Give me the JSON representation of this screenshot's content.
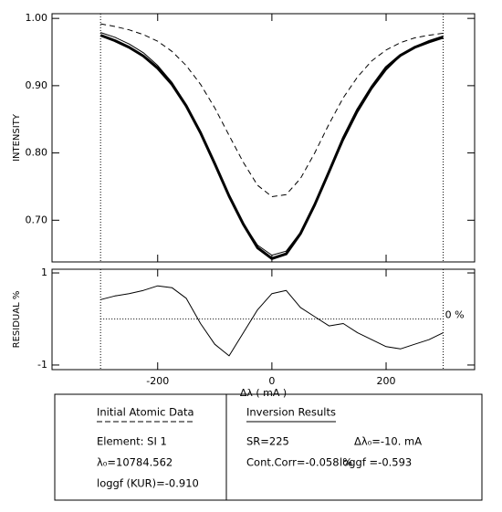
{
  "chart_data": [
    {
      "type": "line",
      "ylabel": "INTENSITY",
      "x": [
        -300,
        -275,
        -250,
        -225,
        -200,
        -175,
        -150,
        -125,
        -100,
        -75,
        -50,
        -25,
        0,
        25,
        50,
        75,
        100,
        125,
        150,
        175,
        200,
        225,
        250,
        275,
        300
      ],
      "series": [
        {
          "color": "#000000",
          "style": "dashed",
          "width": 1,
          "values": [
            0.992,
            0.988,
            0.983,
            0.976,
            0.966,
            0.951,
            0.93,
            0.902,
            0.867,
            0.826,
            0.786,
            0.752,
            0.735,
            0.738,
            0.762,
            0.8,
            0.843,
            0.882,
            0.913,
            0.937,
            0.953,
            0.964,
            0.971,
            0.975,
            0.978
          ]
        },
        {
          "color": "#000000",
          "style": "solid",
          "width": 3,
          "values": [
            0.975,
            0.967,
            0.957,
            0.944,
            0.926,
            0.902,
            0.87,
            0.83,
            0.784,
            0.736,
            0.694,
            0.659,
            0.643,
            0.65,
            0.68,
            0.723,
            0.772,
            0.822,
            0.864,
            0.898,
            0.927,
            0.945,
            0.957,
            0.965,
            0.972
          ]
        },
        {
          "color": "#000000",
          "style": "solid",
          "width": 1,
          "values": [
            0.979,
            0.972,
            0.962,
            0.949,
            0.93,
            0.905,
            0.872,
            0.83,
            0.783,
            0.735,
            0.695,
            0.663,
            0.648,
            0.654,
            0.682,
            0.723,
            0.77,
            0.818,
            0.86,
            0.895,
            0.923,
            0.944,
            0.958,
            0.967,
            0.974
          ]
        }
      ],
      "xlim": [
        -385,
        355
      ],
      "xticks": [
        -200,
        0,
        200
      ],
      "xtick_labels": false,
      "ylim": [
        0.638,
        1.007
      ],
      "yticks": [
        {
          "value": 0.7,
          "label": "0.70"
        },
        {
          "value": 0.8,
          "label": "0.80"
        },
        {
          "value": 0.9,
          "label": "0.90"
        },
        {
          "value": 1.0,
          "label": "1.00"
        }
      ],
      "vlines": [
        -300,
        300
      ]
    },
    {
      "type": "line",
      "ylabel": "RESIDUAL %",
      "xlabel": "Δλ ( mA )",
      "x": [
        -300,
        -275,
        -250,
        -225,
        -200,
        -175,
        -150,
        -125,
        -100,
        -75,
        -50,
        -25,
        0,
        25,
        50,
        75,
        100,
        125,
        150,
        175,
        200,
        225,
        250,
        275,
        300
      ],
      "series": [
        {
          "color": "#000000",
          "style": "solid",
          "width": 1,
          "values": [
            0.42,
            0.5,
            0.55,
            0.62,
            0.72,
            0.68,
            0.45,
            -0.1,
            -0.55,
            -0.8,
            -0.3,
            0.2,
            0.55,
            0.62,
            0.25,
            0.05,
            -0.15,
            -0.1,
            -0.3,
            -0.45,
            -0.6,
            -0.65,
            -0.55,
            -0.45,
            -0.3
          ]
        }
      ],
      "xlim": [
        -385,
        355
      ],
      "xticks": [
        -200,
        0,
        200
      ],
      "xtick_labels": true,
      "ylim": [
        -1.1,
        1.08
      ],
      "yticks": [
        -1,
        1
      ],
      "vlines": [
        -300,
        300
      ],
      "hline": 0,
      "hline_label": "0 %"
    }
  ],
  "info": {
    "left": {
      "heading": "Initial Atomic Data",
      "lines": [
        "Element: SI 1",
        "λ₀=10784.562",
        "loggf (KUR)=-0.910"
      ]
    },
    "right": {
      "heading": "Inversion Results",
      "items": [
        "SR=225",
        "Δλ₀=-10. mA",
        "Cont.Corr=-0.058 %",
        "loggf =-0.593"
      ]
    }
  }
}
